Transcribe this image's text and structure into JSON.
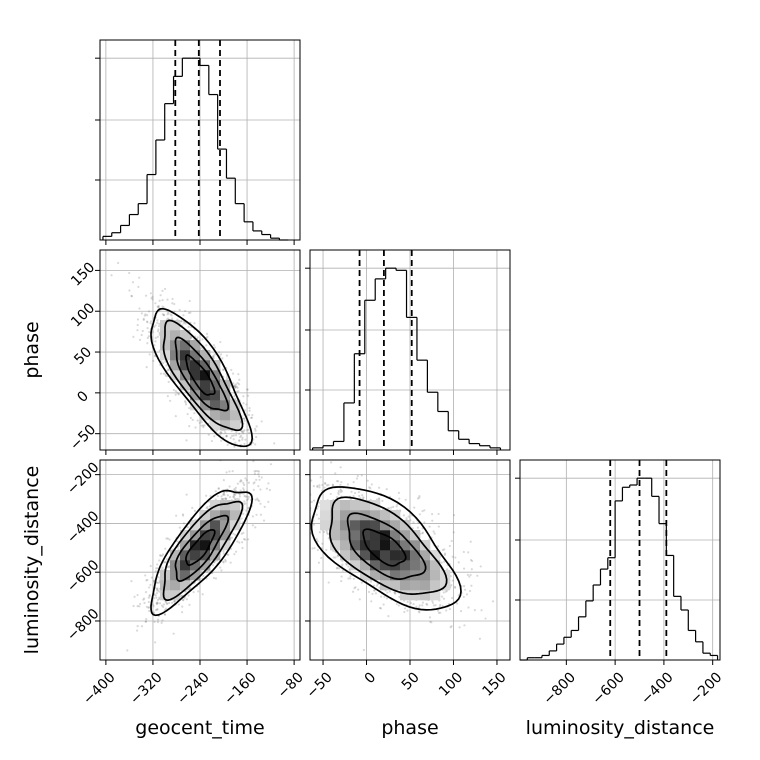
{
  "figure_type": "corner plot",
  "variables": [
    "geocent_time",
    "phase",
    "luminosity_distance"
  ],
  "chart_data": [
    {
      "type": "histogram",
      "panel": "geocent_time",
      "xlabel": "",
      "xlim": [
        -410,
        -70
      ],
      "bin_edges": [
        -405,
        -390,
        -375,
        -360,
        -345,
        -330,
        -315,
        -300,
        -285,
        -270,
        -255,
        -240,
        -225,
        -210,
        -195,
        -180,
        -165,
        -150,
        -135,
        -120,
        -105,
        -90
      ],
      "counts": [
        2,
        4,
        8,
        14,
        20,
        36,
        55,
        75,
        90,
        100,
        100,
        96,
        80,
        50,
        34,
        20,
        10,
        5,
        3,
        1,
        0
      ],
      "quantile_lines": [
        -282,
        -242,
        -206
      ],
      "show_ticklabels": false,
      "xticks": [
        -400,
        -320,
        -240,
        -160,
        -80
      ]
    },
    {
      "type": "histogram",
      "panel": "phase",
      "xlabel": "",
      "xlim": [
        -65,
        165
      ],
      "bin_edges": [
        -62,
        -50,
        -38,
        -26,
        -14,
        -2,
        10,
        22,
        34,
        46,
        58,
        70,
        82,
        94,
        106,
        118,
        130,
        142,
        154
      ],
      "counts": [
        1,
        2,
        4,
        22,
        45,
        70,
        80,
        85,
        84,
        62,
        42,
        27,
        18,
        9,
        5,
        3,
        2,
        1
      ],
      "quantile_lines": [
        -8,
        20,
        52
      ],
      "show_ticklabels": false,
      "xticks": [
        -50,
        0,
        50,
        100,
        150
      ]
    },
    {
      "type": "histogram",
      "panel": "luminosity_distance",
      "xlabel": "luminosity_distance",
      "xlim": [
        -990,
        -170
      ],
      "bin_edges": [
        -990,
        -960,
        -930,
        -900,
        -870,
        -840,
        -810,
        -780,
        -750,
        -720,
        -690,
        -660,
        -630,
        -600,
        -570,
        -540,
        -510,
        -480,
        -450,
        -420,
        -390,
        -360,
        -330,
        -300,
        -270,
        -240,
        -210,
        -180
      ],
      "counts": [
        0,
        1,
        1,
        2,
        4,
        7,
        10,
        13,
        19,
        26,
        33,
        40,
        45,
        70,
        76,
        77,
        80,
        80,
        72,
        60,
        46,
        28,
        22,
        13,
        8,
        3,
        2
      ],
      "quantile_lines": [
        -620,
        -500,
        -390
      ],
      "show_ticklabels": true,
      "xticks": [
        -800,
        -600,
        -400,
        -200
      ],
      "xticklabels": [
        "−800",
        "−600",
        "−400",
        "−200"
      ]
    },
    {
      "type": "scatter_density",
      "panel": "phase vs geocent_time",
      "x_variable": "geocent_time",
      "y_variable": "phase",
      "xlabel": "",
      "ylabel": "phase",
      "xlim": [
        -410,
        -70
      ],
      "ylim": [
        -70,
        175
      ],
      "xticks": [
        -400,
        -320,
        -240,
        -160,
        -80
      ],
      "yticks": [
        -50,
        0,
        50,
        100,
        150
      ],
      "yticklabels": [
        "−50",
        "0",
        "50",
        "100",
        "150"
      ],
      "center": [
        -240,
        20
      ],
      "std": [
        40,
        40
      ],
      "correlation": -0.8
    },
    {
      "type": "scatter_density",
      "panel": "luminosity_distance vs geocent_time",
      "x_variable": "geocent_time",
      "y_variable": "luminosity_distance",
      "xlabel": "geocent_time",
      "ylabel": "luminosity_distance",
      "xlim": [
        -410,
        -70
      ],
      "ylim": [
        -960,
        -140
      ],
      "xticks": [
        -400,
        -320,
        -240,
        -160,
        -80
      ],
      "xticklabels": [
        "−400",
        "−320",
        "−240",
        "−160",
        "−80"
      ],
      "yticks": [
        -800,
        -600,
        -400,
        -200
      ],
      "yticklabels": [
        "−800",
        "−600",
        "−400",
        "−200"
      ],
      "center": [
        -240,
        -500
      ],
      "std": [
        40,
        120
      ],
      "correlation": 0.8
    },
    {
      "type": "scatter_density",
      "panel": "luminosity_distance vs phase",
      "x_variable": "phase",
      "y_variable": "luminosity_distance",
      "xlabel": "phase",
      "ylabel": "",
      "xlim": [
        -65,
        165
      ],
      "ylim": [
        -960,
        -140
      ],
      "xticks": [
        -50,
        0,
        50,
        100,
        150
      ],
      "xticklabels": [
        "−50",
        "0",
        "50",
        "100",
        "150"
      ],
      "yticks": [
        -800,
        -600,
        -400,
        -200
      ],
      "center": [
        20,
        -500
      ],
      "std": [
        40,
        120
      ],
      "correlation": -0.6
    }
  ]
}
